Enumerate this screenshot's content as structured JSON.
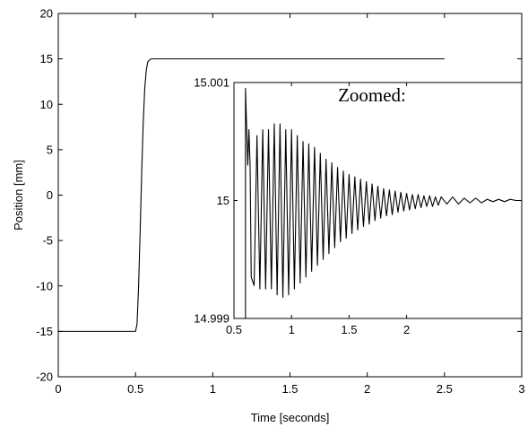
{
  "chart_data": [
    {
      "id": "main",
      "type": "line",
      "xlabel": "Time [seconds]",
      "ylabel": "Position [mm]",
      "xlim": [
        0,
        3
      ],
      "ylim": [
        -20,
        20
      ],
      "xticks": [
        0,
        0.5,
        1,
        1.5,
        2,
        2.5,
        3
      ],
      "xtick_labels": [
        "0",
        "0.5",
        "1",
        "1.5",
        "2",
        "2.5",
        "3"
      ],
      "yticks": [
        -20,
        -15,
        -10,
        -5,
        0,
        5,
        10,
        15,
        20
      ],
      "ytick_labels": [
        "-20",
        "-15",
        "-10",
        "-5",
        "0",
        "5",
        "10",
        "15",
        "20"
      ],
      "grid": false,
      "series": [
        {
          "color": "#000000",
          "x": [
            0,
            0.5,
            0.51,
            0.52,
            0.53,
            0.54,
            0.55,
            0.56,
            0.57,
            0.58,
            0.6,
            2.5
          ],
          "y": [
            -15,
            -15,
            -14.2,
            -10,
            -4,
            2.5,
            8,
            11.8,
            13.8,
            14.7,
            15,
            15
          ]
        }
      ]
    },
    {
      "id": "inset",
      "type": "line",
      "title": "Zoomed:",
      "xlim": [
        0.5,
        3
      ],
      "ylim": [
        14.999,
        15.001
      ],
      "xticks": [
        0.5,
        1,
        1.5,
        2
      ],
      "xtick_labels": [
        "0.5",
        "1",
        "1.5",
        "2"
      ],
      "yticks": [
        14.999,
        15,
        15.001
      ],
      "ytick_labels": [
        "14.999",
        "15",
        "15.001"
      ],
      "grid": false,
      "series": [
        {
          "color": "#000000",
          "description_free": true,
          "x": [
            0.6,
            0.6,
            0.62,
            0.63,
            0.64,
            0.65,
            0.675,
            0.7,
            0.725,
            0.75,
            0.775,
            0.8,
            0.825,
            0.85,
            0.875,
            0.9,
            0.925,
            0.95,
            0.975,
            1.0,
            1.025,
            1.05,
            1.075,
            1.1,
            1.125,
            1.15,
            1.175,
            1.2,
            1.225,
            1.25,
            1.275,
            1.3,
            1.325,
            1.35,
            1.375,
            1.4,
            1.425,
            1.45,
            1.475,
            1.5,
            1.525,
            1.55,
            1.575,
            1.6,
            1.625,
            1.65,
            1.675,
            1.7,
            1.725,
            1.75,
            1.775,
            1.8,
            1.825,
            1.85,
            1.875,
            1.9,
            1.925,
            1.95,
            1.975,
            2.0,
            2.025,
            2.05,
            2.075,
            2.1,
            2.125,
            2.15,
            2.175,
            2.2,
            2.225,
            2.25,
            2.275,
            2.3,
            2.35,
            2.4,
            2.45,
            2.5,
            2.55,
            2.6,
            2.65,
            2.7,
            2.75,
            2.8,
            2.85,
            2.9,
            2.95,
            3.0
          ],
          "y": [
            14.999,
            15.00095,
            15.0003,
            15.0006,
            15.0003,
            14.99935,
            14.99928,
            15.00055,
            14.99925,
            15.0006,
            14.99925,
            15.0006,
            14.99925,
            15.00065,
            14.9992,
            15.00065,
            14.99918,
            15.0006,
            14.9992,
            15.0006,
            14.99925,
            15.00055,
            14.9993,
            15.0005,
            14.99935,
            15.00048,
            14.9994,
            15.00045,
            14.99945,
            15.0004,
            14.9995,
            15.00035,
            14.99955,
            15.00032,
            14.9996,
            15.00028,
            14.99965,
            15.00025,
            14.99968,
            15.00022,
            14.99972,
            15.0002,
            14.99975,
            15.00018,
            14.99978,
            15.00016,
            14.9998,
            15.00014,
            14.99983,
            15.00012,
            14.99985,
            15.0001,
            14.99987,
            15.00009,
            14.99988,
            15.00008,
            14.9999,
            15.00007,
            14.99991,
            15.00006,
            14.99992,
            15.00005,
            14.99993,
            15.00005,
            14.99994,
            15.00004,
            14.99995,
            15.00004,
            14.99995,
            15.00003,
            14.99996,
            15.00003,
            14.99997,
            15.00003,
            14.99997,
            15.00002,
            14.99998,
            15.00002,
            14.99998,
            15.00001,
            14.99999,
            15.00001,
            14.99999,
            15.00001,
            15.0,
            15.0
          ]
        }
      ]
    }
  ]
}
